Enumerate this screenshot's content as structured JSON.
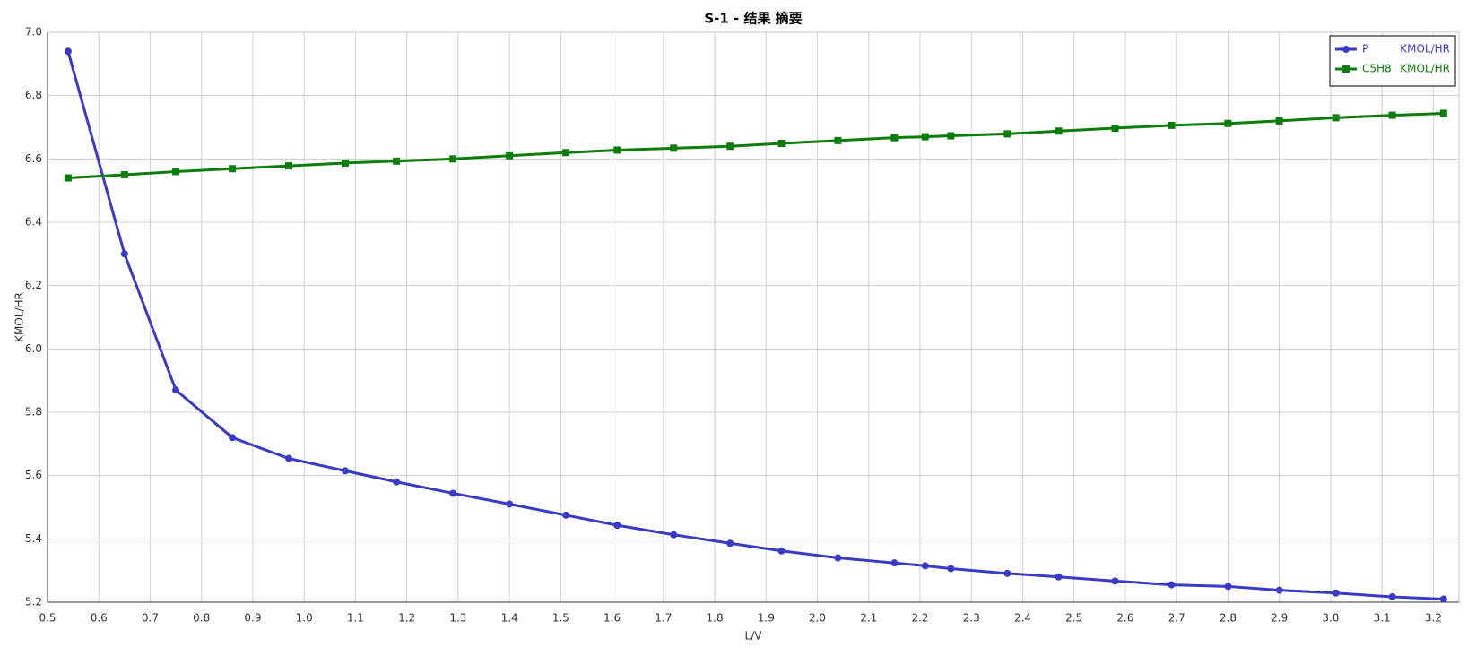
{
  "chart_data": {
    "type": "line",
    "title": "S-1 - 结果 摘要",
    "x_label": "L/V",
    "y_label": "KMOL/HR",
    "x": [
      0.54,
      0.65,
      0.75,
      0.86,
      0.97,
      1.08,
      1.18,
      1.29,
      1.4,
      1.51,
      1.61,
      1.72,
      1.83,
      1.93,
      2.04,
      2.15,
      2.21,
      2.26,
      2.37,
      2.47,
      2.58,
      2.69,
      2.8,
      2.9,
      3.01,
      3.12,
      3.22
    ],
    "series": [
      {
        "name": "P",
        "unit": "KMOL/HR",
        "color": "#3a3ac8",
        "marker": "circle",
        "values": [
          6.94,
          6.3,
          5.87,
          5.72,
          5.654,
          5.615,
          5.58,
          5.544,
          5.51,
          5.475,
          5.443,
          5.413,
          5.386,
          5.362,
          5.34,
          5.324,
          5.315,
          5.306,
          5.291,
          5.28,
          5.267,
          5.255,
          5.25,
          5.238,
          5.229,
          5.217,
          5.21
        ]
      },
      {
        "name": "C5H8",
        "unit": "KMOL/HR",
        "color": "#0a7d0a",
        "marker": "square",
        "values": [
          6.54,
          6.55,
          6.56,
          6.569,
          6.578,
          6.587,
          6.593,
          6.6,
          6.61,
          6.62,
          6.628,
          6.634,
          6.64,
          6.649,
          6.658,
          6.667,
          6.67,
          6.673,
          6.679,
          6.688,
          6.697,
          6.706,
          6.712,
          6.72,
          6.73,
          6.738,
          6.744
        ]
      }
    ],
    "xlim": [
      0.5,
      3.25
    ],
    "xticks": [
      0.5,
      0.6,
      0.7,
      0.8,
      0.9,
      {
        "value": 1,
        "label": "1.0"
      },
      1.1,
      1.2,
      1.3,
      1.4,
      1.5,
      1.6,
      1.7,
      1.8,
      1.9,
      {
        "value": 2,
        "label": "2.0"
      },
      2.1,
      2.2,
      2.3,
      2.4,
      2.5,
      2.6,
      2.7,
      2.8,
      2.9,
      {
        "value": 3,
        "label": "3.0"
      },
      3.1,
      3.2
    ],
    "ylim": [
      5.2,
      7.0
    ],
    "yticks": [
      5.2,
      5.4,
      5.6,
      5.8,
      {
        "value": 6,
        "label": "6.0"
      },
      6.2,
      6.4,
      6.6,
      6.8,
      {
        "value": 7,
        "label": "7.0"
      }
    ],
    "grid": true,
    "legend": "upper right"
  }
}
